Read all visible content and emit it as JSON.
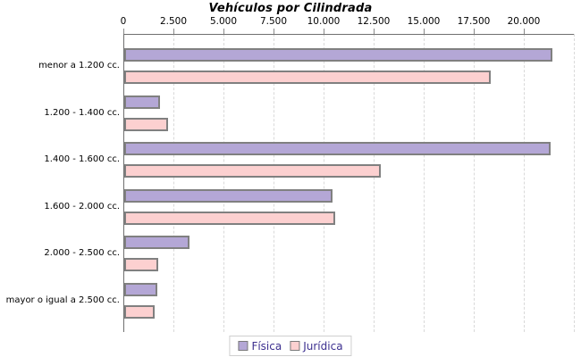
{
  "title": "Vehículos por Cilindrada",
  "chart_data": {
    "type": "bar",
    "orientation": "horizontal",
    "title": "Vehículos por Cilindrada",
    "categories": [
      "menor a 1.200 cc.",
      "1.200 - 1.400 cc.",
      "1.400 - 1.600 cc.",
      "1.600 - 2.000 cc.",
      "2.000 - 2.500 cc.",
      "mayor o igual a 2.500 cc."
    ],
    "series": [
      {
        "name": "Física",
        "color": "#b4a7d6",
        "border_color": "#808080",
        "values": [
          21400,
          1800,
          21300,
          10400,
          3250,
          1650
        ]
      },
      {
        "name": "Jurídica",
        "color": "#fcd0d0",
        "border_color": "#808080",
        "values": [
          18300,
          2200,
          12800,
          10550,
          1700,
          1500
        ]
      }
    ],
    "x_axis": {
      "tick_labels": [
        "0",
        "2.500",
        "5.000",
        "7.500",
        "10.000",
        "12.500",
        "15.000",
        "17.500",
        "20.000"
      ],
      "tick_values": [
        0,
        2500,
        5000,
        7500,
        10000,
        12500,
        15000,
        17500,
        20000
      ],
      "axis_max_rendered": 22500,
      "position": "top"
    },
    "grid": "dashed-vertical",
    "legend_position": "bottom-center",
    "legend_text_color": "#3c2f8f"
  }
}
